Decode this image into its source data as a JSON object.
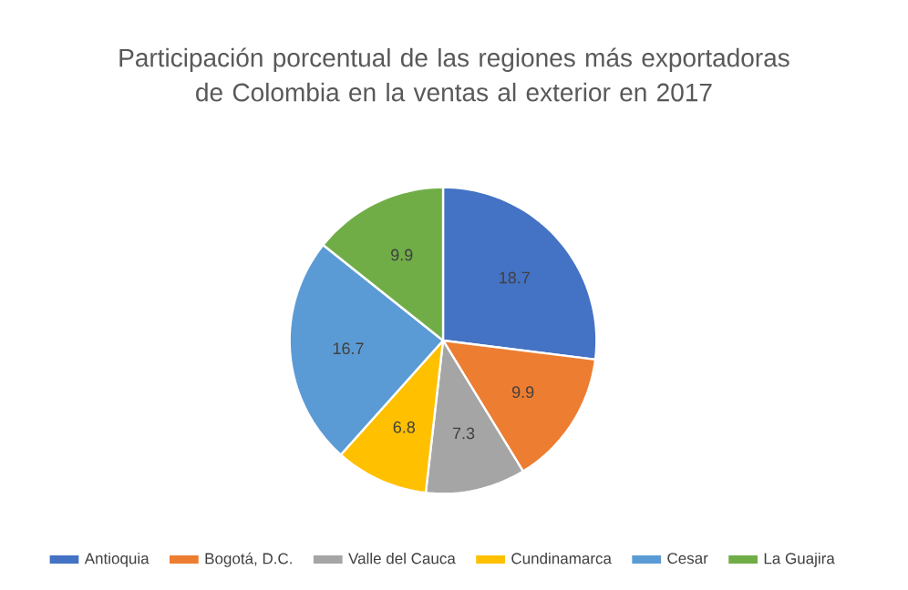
{
  "chart_data": {
    "type": "pie",
    "title": "Participación porcentual de las regiones más exportadoras de Colombia en la ventas al exterior en 2017",
    "categories": [
      "Antioquia",
      "Bogotá, D.C.",
      "Valle del Cauca",
      "Cundinamarca",
      "Cesar",
      "La Guajira"
    ],
    "values": [
      18.7,
      9.9,
      7.3,
      6.8,
      16.7,
      9.9
    ],
    "colors": [
      "#4472c4",
      "#ed7d31",
      "#a5a5a5",
      "#ffc000",
      "#5b9bd5",
      "#70ad47"
    ],
    "data_labels": true,
    "legend": "bottom"
  }
}
